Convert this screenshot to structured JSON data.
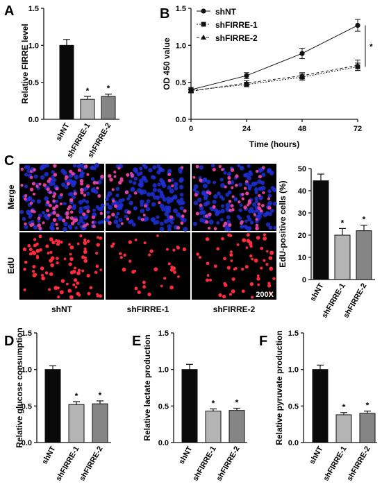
{
  "panels": {
    "A": {
      "letter": "A",
      "chart_data": {
        "type": "bar",
        "ylabel": "Relative FIRRE level",
        "categories": [
          "shNT",
          "shFIRRE-1",
          "shFIRRE-2"
        ],
        "values": [
          1.0,
          0.27,
          0.31
        ],
        "errors": [
          0.08,
          0.04,
          0.03
        ],
        "significance": [
          "",
          "*",
          "*"
        ],
        "colors": [
          "#0a0a0a",
          "#b4b4b4",
          "#858585"
        ],
        "ylim": [
          0,
          1.5
        ],
        "yticks": [
          0.0,
          0.5,
          1.0,
          1.5
        ],
        "ytick_labels": [
          "0.0",
          "0.5",
          "1.0",
          "1.5"
        ]
      }
    },
    "B": {
      "letter": "B",
      "chart_data": {
        "type": "line",
        "xlabel": "Time (hours)",
        "ylabel": "OD 450 value",
        "x": [
          0,
          24,
          48,
          72
        ],
        "xlim": [
          0,
          72
        ],
        "xticks": [
          0,
          24,
          48,
          72
        ],
        "xtick_labels": [
          "0",
          "24",
          "48",
          "72"
        ],
        "ylim": [
          0,
          1.5
        ],
        "yticks": [
          0.0,
          0.5,
          1.0,
          1.5
        ],
        "ytick_labels": [
          "0.0",
          "0.5",
          "1.0",
          "1.5"
        ],
        "legend_position": "top-left",
        "significance_label": "*",
        "series": [
          {
            "name": "shNT",
            "values": [
              0.4,
              0.59,
              0.89,
              1.27
            ],
            "errors": [
              0.03,
              0.04,
              0.07,
              0.08
            ],
            "marker": "circle",
            "dash": "solid"
          },
          {
            "name": "shFIRRE-1",
            "values": [
              0.39,
              0.47,
              0.57,
              0.71
            ],
            "errors": [
              0.02,
              0.03,
              0.04,
              0.05
            ],
            "marker": "square",
            "dash": "dotted"
          },
          {
            "name": "shFIRRE-2",
            "values": [
              0.38,
              0.49,
              0.59,
              0.73
            ],
            "errors": [
              0.02,
              0.03,
              0.04,
              0.07
            ],
            "marker": "triangle",
            "dash": "dashed"
          }
        ]
      }
    },
    "C": {
      "letter": "C",
      "micrograph": {
        "row_labels": [
          "Merge",
          "EdU"
        ],
        "column_labels": [
          "shNT",
          "shFIRRE-1",
          "shFIRRE-2"
        ],
        "magnification": "200X",
        "red_counts": [
          90,
          35,
          60
        ],
        "colors": {
          "nucleus": "#1f2fd6",
          "edu": "#ff2a3a",
          "merge_edu": "#e0409a",
          "background": "#000000"
        }
      },
      "chart_data": {
        "type": "bar",
        "ylabel": "EdU-positive cells (%)",
        "categories": [
          "shNT",
          "shFIRRE-1",
          "shFIRRE-2"
        ],
        "values": [
          44.5,
          20.0,
          22.0
        ],
        "errors": [
          3.0,
          3.0,
          2.5
        ],
        "significance": [
          "",
          "*",
          "*"
        ],
        "colors": [
          "#0a0a0a",
          "#b4b4b4",
          "#858585"
        ],
        "ylim": [
          0,
          50
        ],
        "yticks": [
          0,
          10,
          20,
          30,
          40,
          50
        ],
        "ytick_labels": [
          "0",
          "10",
          "20",
          "30",
          "40",
          "50"
        ]
      }
    },
    "D": {
      "letter": "D",
      "chart_data": {
        "type": "bar",
        "ylabel": "Relative glucose consumption",
        "categories": [
          "shNT",
          "shFIRRE-1",
          "shFIRRE-2"
        ],
        "values": [
          1.0,
          0.52,
          0.53
        ],
        "errors": [
          0.05,
          0.04,
          0.04
        ],
        "significance": [
          "",
          "*",
          "*"
        ],
        "colors": [
          "#0a0a0a",
          "#b4b4b4",
          "#858585"
        ],
        "ylim": [
          0,
          1.5
        ],
        "yticks": [
          0.0,
          0.5,
          1.0,
          1.5
        ],
        "ytick_labels": [
          "0.0",
          "0.5",
          "1.0",
          "1.5"
        ]
      }
    },
    "E": {
      "letter": "E",
      "chart_data": {
        "type": "bar",
        "ylabel": "Relative lactate production",
        "categories": [
          "shNT",
          "shFIRRE-1",
          "shFIRRE-2"
        ],
        "values": [
          1.0,
          0.43,
          0.44
        ],
        "errors": [
          0.07,
          0.03,
          0.03
        ],
        "significance": [
          "",
          "*",
          "*"
        ],
        "colors": [
          "#0a0a0a",
          "#b4b4b4",
          "#858585"
        ],
        "ylim": [
          0,
          1.5
        ],
        "yticks": [
          0.0,
          0.5,
          1.0,
          1.5
        ],
        "ytick_labels": [
          "0.0",
          "0.5",
          "1.0",
          "1.5"
        ]
      }
    },
    "F": {
      "letter": "F",
      "chart_data": {
        "type": "bar",
        "ylabel": "Relative pyruvate production",
        "categories": [
          "shNT",
          "shFIRRE-1",
          "shFIRRE-2"
        ],
        "values": [
          1.0,
          0.38,
          0.4
        ],
        "errors": [
          0.06,
          0.03,
          0.03
        ],
        "significance": [
          "",
          "*",
          "*"
        ],
        "colors": [
          "#0a0a0a",
          "#b4b4b4",
          "#858585"
        ],
        "ylim": [
          0,
          1.5
        ],
        "yticks": [
          0.0,
          0.5,
          1.0,
          1.5
        ],
        "ytick_labels": [
          "0.0",
          "0.5",
          "1.0",
          "1.5"
        ]
      }
    }
  }
}
